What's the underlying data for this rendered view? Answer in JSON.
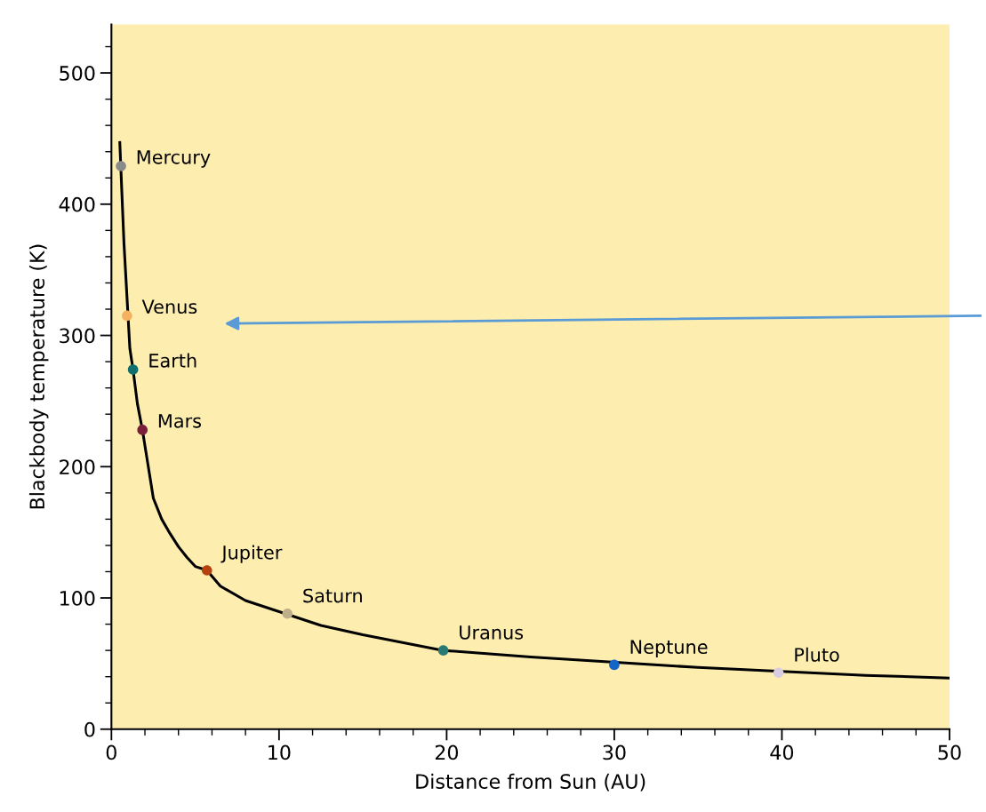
{
  "chart_data": {
    "type": "scatter",
    "xlabel": "Distance from Sun (AU)",
    "ylabel": "Blackbody temperature (K)",
    "xlim": [
      0,
      50
    ],
    "ylim": [
      0,
      537
    ],
    "xticks": [
      0,
      10,
      20,
      30,
      40,
      50
    ],
    "yticks": [
      0,
      100,
      200,
      300,
      400,
      500
    ],
    "grid": false,
    "series": [
      {
        "type": "line",
        "marker": "none",
        "color": "#000000",
        "line_style": "solid",
        "x": [
          0.5,
          0.75,
          1.1,
          1.29,
          1.55,
          1.85,
          2.2,
          2.5,
          3,
          3.5,
          4,
          4.5,
          5,
          5.7,
          6.5,
          8,
          12.5,
          15,
          19.8,
          25,
          35,
          45,
          50
        ],
        "values": [
          447,
          370,
          290,
          274,
          248,
          228,
          200,
          176,
          160,
          149,
          139,
          131,
          124,
          121,
          109,
          98,
          79,
          72,
          60,
          55,
          47,
          41,
          39
        ]
      },
      {
        "marker": "circle",
        "x": [
          0.57,
          0.93,
          1.29,
          1.85,
          5.7,
          10.5,
          19.8,
          30.0,
          39.8
        ],
        "values": [
          429,
          315,
          274,
          228,
          121,
          88,
          60,
          49,
          43
        ],
        "colors": [
          "#8a8a8a",
          "#f5b060",
          "#0f6e6e",
          "#7a1f3a",
          "#b5410f",
          "#bfae8a",
          "#2a7a74",
          "#1565c8",
          "#d8cde0"
        ]
      }
    ],
    "annotations": [
      {
        "text": "Mercury",
        "x": 0.57,
        "y": 429
      },
      {
        "text": "Venus",
        "x": 0.93,
        "y": 315
      },
      {
        "text": "Earth",
        "x": 1.29,
        "y": 274
      },
      {
        "text": "Mars",
        "x": 1.85,
        "y": 228
      },
      {
        "text": "Jupiter",
        "x": 5.7,
        "y": 121
      },
      {
        "text": "Saturn",
        "x": 10.5,
        "y": 88
      },
      {
        "text": "Uranus",
        "x": 19.8,
        "y": 60
      },
      {
        "text": "Neptune",
        "x": 30.0,
        "y": 49
      },
      {
        "text": "Pluto",
        "x": 39.8,
        "y": 43
      }
    ]
  }
}
